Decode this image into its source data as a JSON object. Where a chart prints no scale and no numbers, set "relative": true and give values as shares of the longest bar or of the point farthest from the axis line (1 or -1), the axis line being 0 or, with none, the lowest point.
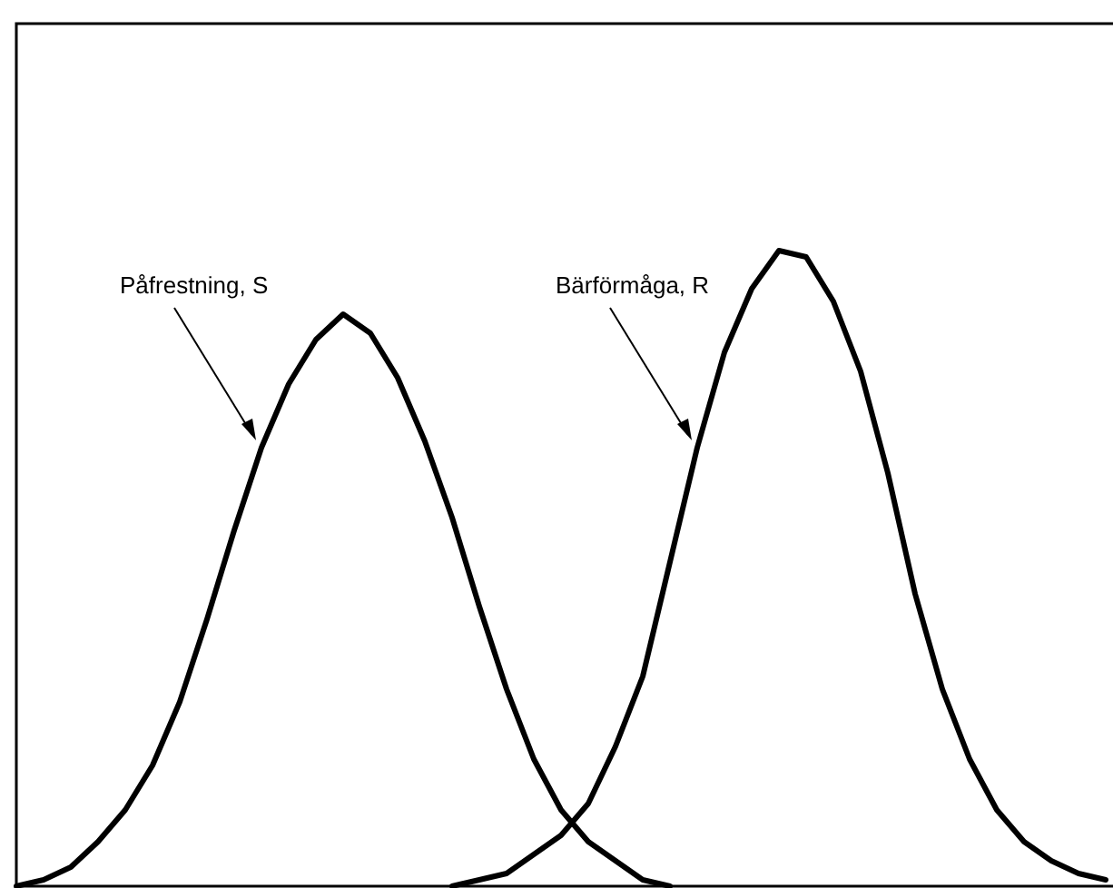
{
  "chart_data": {
    "type": "line",
    "relative": true,
    "categories": [
      null,
      null,
      null,
      null,
      null,
      null,
      null,
      null,
      null,
      null,
      null,
      null,
      null,
      null,
      null,
      null,
      null,
      null,
      null,
      null,
      null,
      null,
      null,
      null,
      null,
      null,
      null,
      null,
      null,
      null,
      null,
      null,
      null,
      null,
      null,
      null,
      null,
      null,
      null,
      null,
      null
    ],
    "series": [
      {
        "name": "Påfrestning, S",
        "color": "#000000",
        "values": [
          0,
          0.01,
          0.03,
          0.07,
          0.12,
          0.19,
          0.29,
          0.42,
          0.56,
          0.69,
          0.79,
          0.86,
          0.9,
          0.87,
          0.8,
          0.7,
          0.58,
          0.44,
          0.31,
          0.2,
          0.12,
          0.07,
          0.04,
          0.01,
          0,
          null,
          null,
          null,
          null,
          null,
          null,
          null,
          null,
          null,
          null,
          null,
          null,
          null,
          null,
          null,
          null
        ]
      },
      {
        "name": "Bärförmåga, R",
        "color": "#000000",
        "values": [
          null,
          null,
          null,
          null,
          null,
          null,
          null,
          null,
          null,
          null,
          null,
          null,
          null,
          null,
          null,
          null,
          0,
          0.01,
          0.02,
          0.05,
          0.08,
          0.13,
          0.22,
          0.33,
          0.51,
          0.69,
          0.84,
          0.94,
          1,
          0.99,
          0.92,
          0.81,
          0.65,
          0.46,
          0.31,
          0.2,
          0.12,
          0.07,
          0.04,
          0.02,
          0.01
        ]
      }
    ]
  }
}
